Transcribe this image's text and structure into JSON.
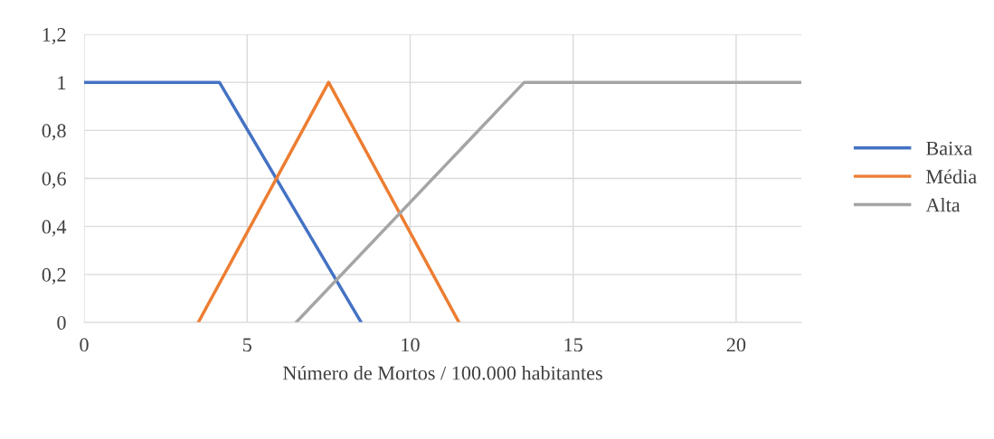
{
  "chart_data": {
    "type": "line",
    "xlabel": "Número de Mortos / 100.000 habitantes",
    "series": [
      {
        "name": "Baixa",
        "color": "#4472c4",
        "x": [
          0,
          4.15,
          8.5
        ],
        "values": [
          1,
          1,
          0
        ]
      },
      {
        "name": "Média",
        "color": "#ed7d31",
        "x": [
          3.5,
          7.5,
          11.5
        ],
        "values": [
          0,
          1,
          0
        ]
      },
      {
        "name": "Alta",
        "color": "#a5a5a5",
        "x": [
          6.5,
          13.5,
          22
        ],
        "values": [
          0,
          1,
          1
        ]
      }
    ],
    "xlim": [
      0,
      22
    ],
    "xticks": [
      0,
      5,
      10,
      15,
      20
    ],
    "ylim": [
      0,
      1.2
    ],
    "yticks": [
      0,
      {
        "value": 0.2,
        "label": "0,2"
      },
      {
        "value": 0.4,
        "label": "0,4"
      },
      {
        "value": 0.6,
        "label": "0,6"
      },
      {
        "value": 0.8,
        "label": "0,8"
      },
      1,
      {
        "value": 1.2,
        "label": "1,2"
      }
    ],
    "grid": true,
    "legend": "right",
    "marker": "none",
    "line_style": "solid"
  }
}
